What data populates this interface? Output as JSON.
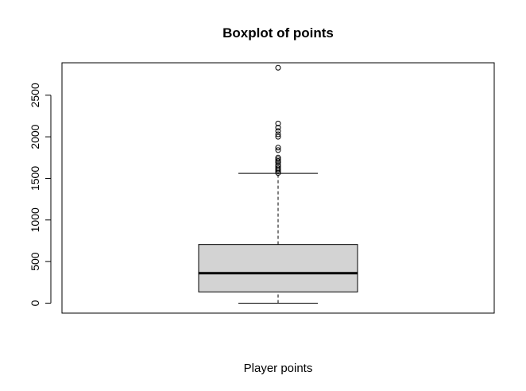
{
  "chart_data": {
    "type": "boxplot",
    "title": "Boxplot of points",
    "xlabel": "Player points",
    "ylabel": "",
    "ylim": [
      -120,
      2890
    ],
    "yticks": [
      0,
      500,
      1000,
      1500,
      2000,
      2500
    ],
    "ytick_labels": [
      "0",
      "500",
      "1000",
      "1500",
      "2000",
      "2500"
    ],
    "grid": false,
    "legend": "none",
    "box": {
      "min": 0,
      "q1": 135,
      "median": 360,
      "q3": 705,
      "whisker_high": 1560
    },
    "outliers": [
      1565,
      1585,
      1605,
      1620,
      1640,
      1660,
      1690,
      1710,
      1730,
      1750,
      1840,
      1870,
      2000,
      2030,
      2070,
      2110,
      2160,
      2830
    ],
    "colors": {
      "box_fill": "#d3d3d3",
      "stroke": "#000000",
      "background": "#ffffff"
    }
  }
}
